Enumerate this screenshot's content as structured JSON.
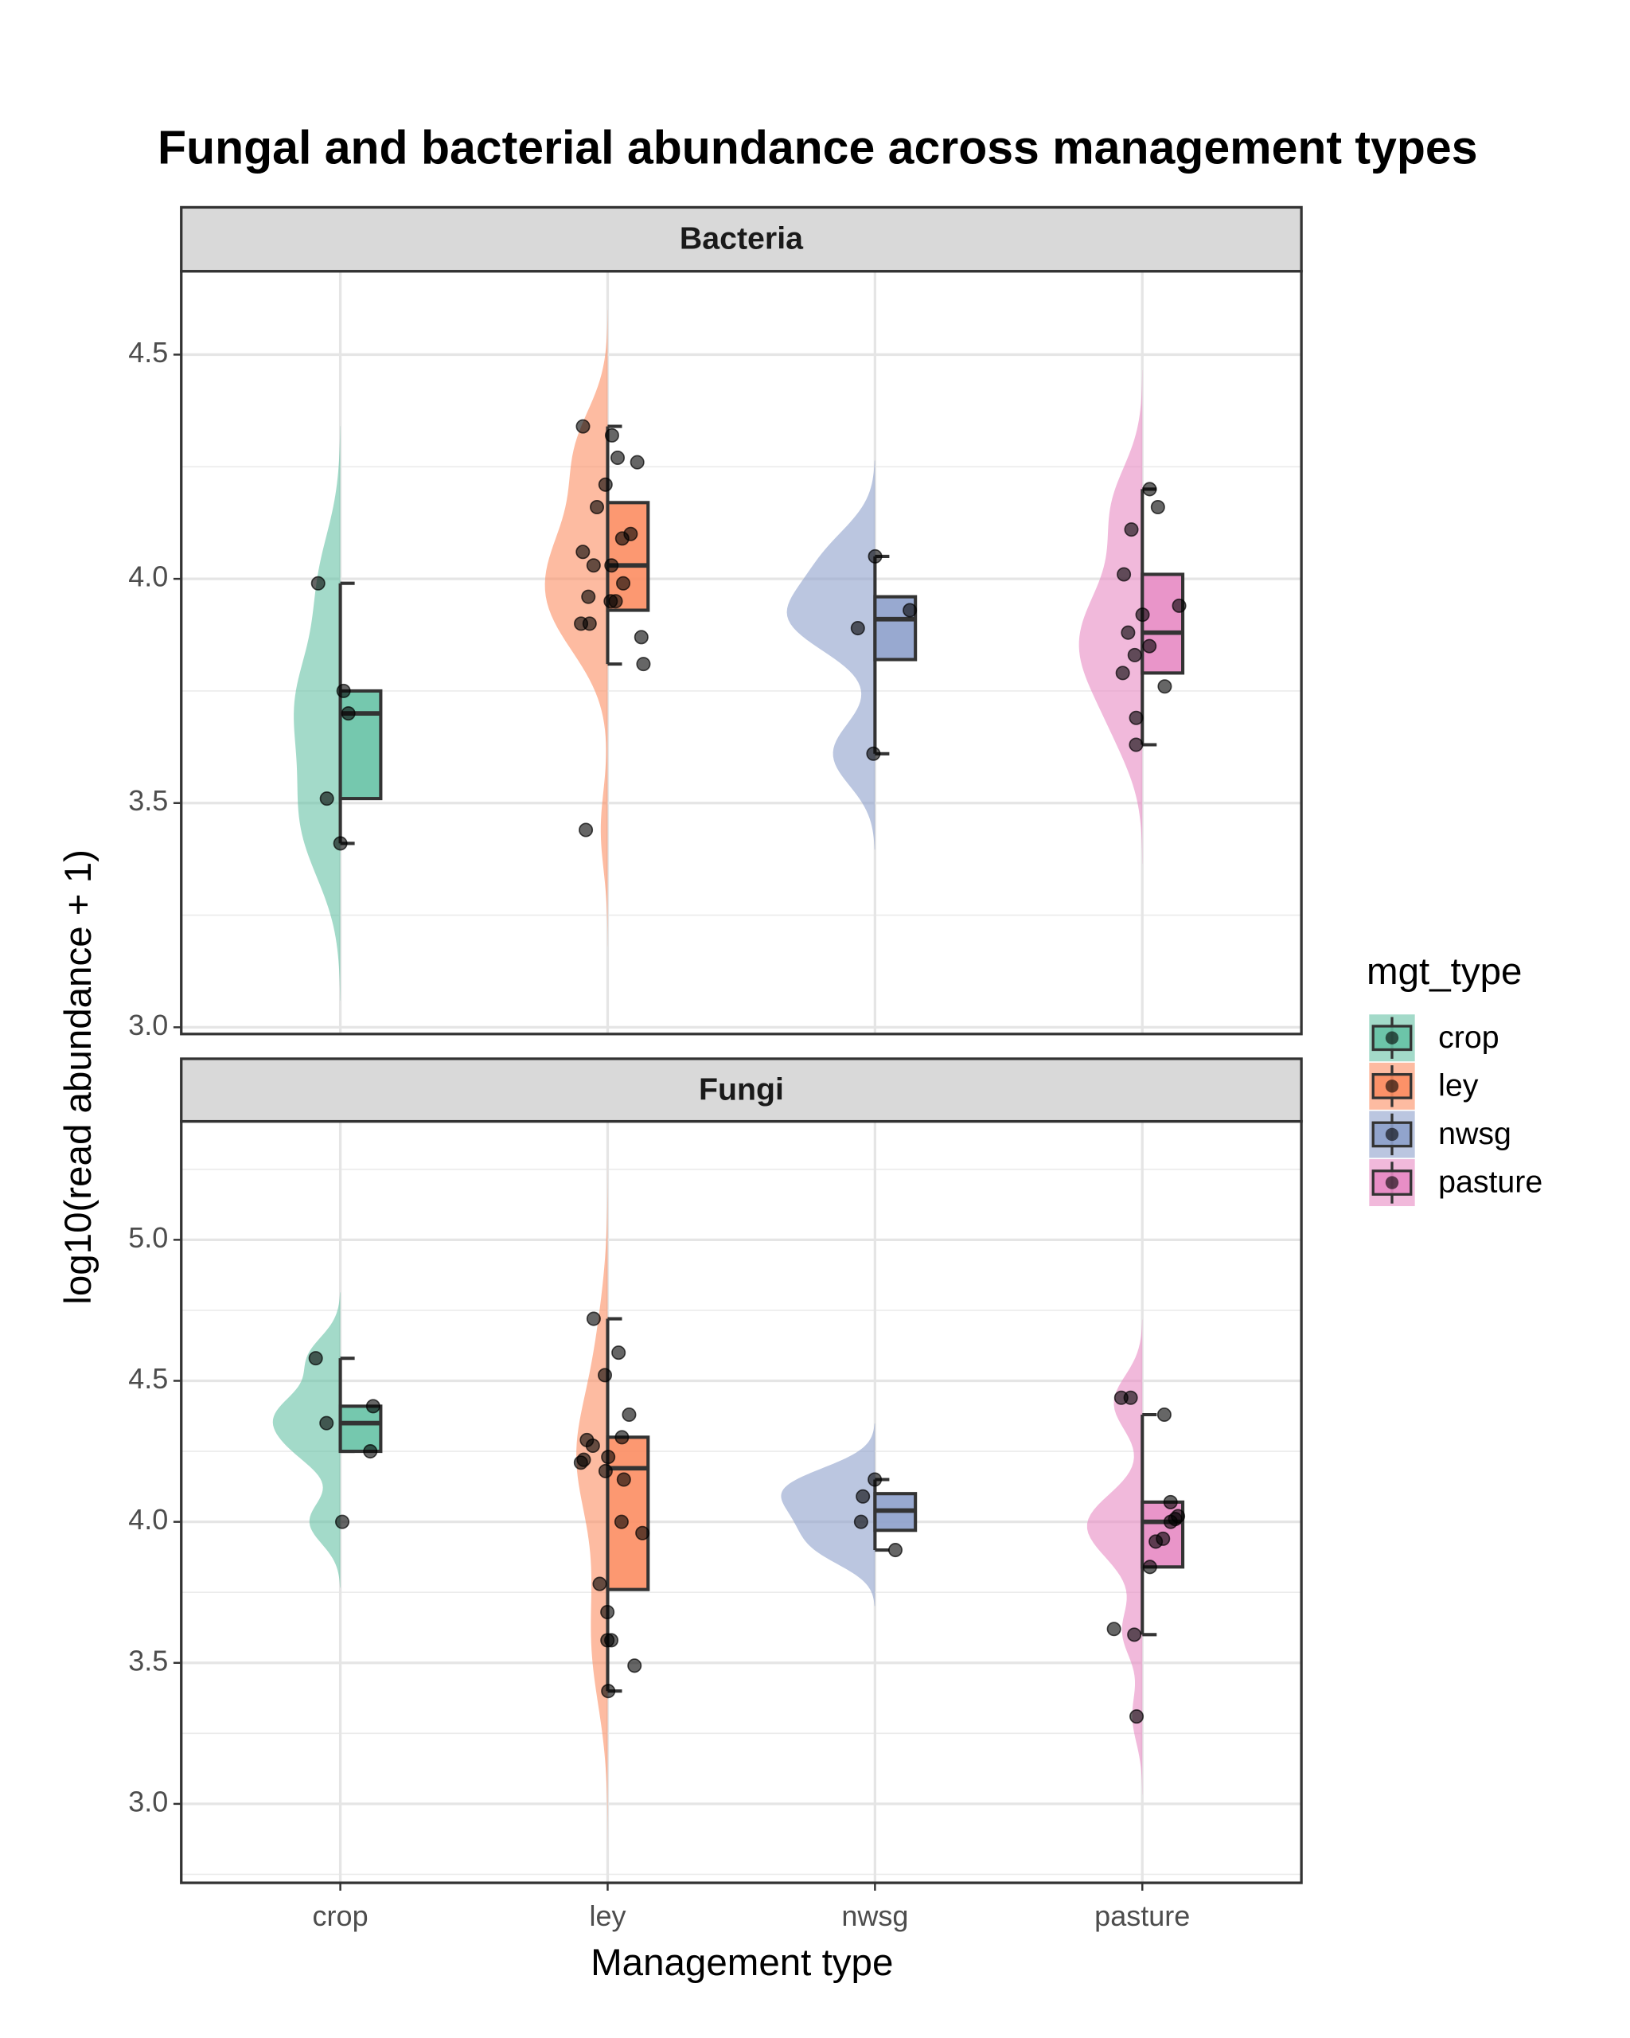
{
  "chart_data": {
    "type": "raincloud",
    "title": "Fungal and bacterial abundance across management types",
    "x_label": "Management type",
    "y_label": "log10(read abundance + 1)",
    "legend_title": "mgt_type",
    "categories": [
      "crop",
      "ley",
      "nwsg",
      "pasture"
    ],
    "colors": [
      "#66c2a5",
      "#fc8d62",
      "#8da0cb",
      "#e78ac3"
    ],
    "grid": true,
    "facets": [
      {
        "title": "Bacteria",
        "ylim": [
          2.985,
          4.686
        ],
        "yticks": [
          {
            "value": 3.0,
            "label": "3.0"
          },
          3.5,
          {
            "value": 4.0,
            "label": "4.0"
          },
          4.5
        ],
        "minor_yticks": [
          3.25,
          3.75,
          4.25
        ],
        "groups": [
          {
            "points": [
              3.75,
              3.7,
              3.99,
              3.51,
              3.41
            ],
            "min": 3.41,
            "q1": 3.51,
            "median": 3.7,
            "q3": 3.75,
            "max": 3.99
          },
          {
            "points": [
              4.32,
              4.34,
              4.26,
              4.27,
              4.21,
              4.16,
              4.1,
              4.09,
              4.06,
              4.03,
              4.03,
              3.99,
              3.96,
              3.95,
              3.95,
              3.9,
              3.9,
              3.87,
              3.81,
              3.44
            ],
            "min": 3.81,
            "q1": 3.93,
            "median": 4.03,
            "q3": 4.17,
            "max": 4.34
          },
          {
            "points": [
              4.05,
              3.93,
              3.89,
              3.61
            ],
            "min": 3.61,
            "q1": 3.82,
            "median": 3.91,
            "q3": 3.96,
            "max": 4.05
          },
          {
            "points": [
              4.2,
              4.16,
              4.11,
              4.01,
              3.94,
              3.92,
              3.88,
              3.85,
              3.83,
              3.79,
              3.76,
              3.69,
              3.63
            ],
            "min": 3.63,
            "q1": 3.79,
            "median": 3.88,
            "q3": 4.01,
            "max": 4.2
          }
        ]
      },
      {
        "title": "Fungi",
        "ylim": [
          2.72,
          5.42
        ],
        "yticks": [
          {
            "value": 3.0,
            "label": "3.0"
          },
          3.5,
          {
            "value": 4.0,
            "label": "4.0"
          },
          4.5,
          {
            "value": 5.0,
            "label": "5.0"
          }
        ],
        "minor_yticks": [
          2.75,
          3.25,
          3.75,
          4.25,
          4.75,
          5.25
        ],
        "groups": [
          {
            "points": [
              4.58,
              4.41,
              4.35,
              4.25,
              4.0
            ],
            "min": 4.25,
            "q1": 4.25,
            "median": 4.35,
            "q3": 4.41,
            "max": 4.58
          },
          {
            "points": [
              4.72,
              4.6,
              4.52,
              4.38,
              4.3,
              4.29,
              4.27,
              4.23,
              4.22,
              4.21,
              4.18,
              4.15,
              4.0,
              3.96,
              3.78,
              3.68,
              3.58,
              3.58,
              3.49,
              3.4
            ],
            "min": 3.4,
            "q1": 3.76,
            "median": 4.19,
            "q3": 4.3,
            "max": 4.72
          },
          {
            "points": [
              4.15,
              4.09,
              4.0,
              3.9
            ],
            "min": 3.9,
            "q1": 3.97,
            "median": 4.04,
            "q3": 4.1,
            "max": 4.15
          },
          {
            "points": [
              4.44,
              4.44,
              4.38,
              4.07,
              4.02,
              4.01,
              4.0,
              3.94,
              3.93,
              3.84,
              3.62,
              3.6,
              3.31
            ],
            "min": 3.6,
            "q1": 3.84,
            "median": 4.0,
            "q3": 4.07,
            "max": 4.38
          }
        ]
      }
    ]
  }
}
